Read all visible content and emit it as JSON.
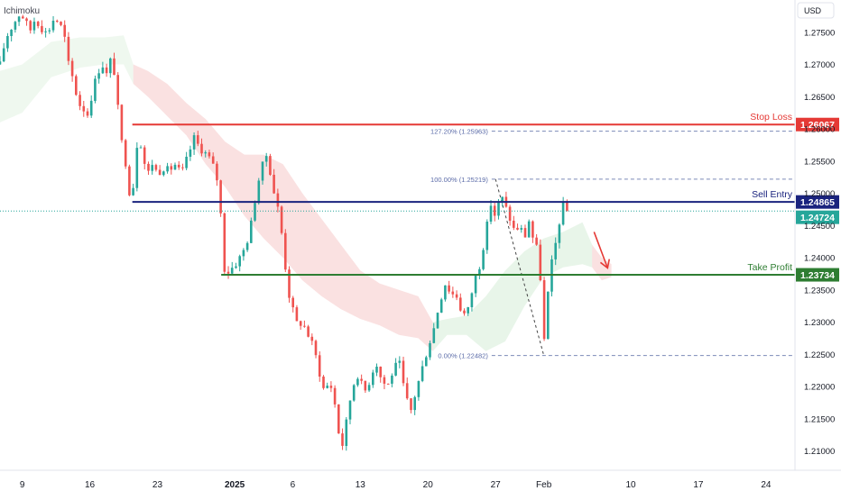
{
  "chart_data": {
    "type": "candlestick",
    "indicator_label": "Ichimoku",
    "currency_label": "USD",
    "y_ticks": [
      "1.27500",
      "1.27000",
      "1.26500",
      "1.26000",
      "1.25500",
      "1.25000",
      "1.24500",
      "1.24000",
      "1.23500",
      "1.23000",
      "1.22500",
      "1.22000",
      "1.21500",
      "1.21000"
    ],
    "ylim": [
      1.207,
      1.28
    ],
    "x_ticks": [
      {
        "label": "9",
        "day": 9
      },
      {
        "label": "16",
        "day": 16
      },
      {
        "label": "23",
        "day": 23
      },
      {
        "label": "2025",
        "day": 31,
        "bold": true
      },
      {
        "label": "6",
        "day": 37
      },
      {
        "label": "13",
        "day": 44
      },
      {
        "label": "20",
        "day": 51
      },
      {
        "label": "27",
        "day": 58
      },
      {
        "label": "Feb",
        "day": 63
      },
      {
        "label": "10",
        "day": 72
      },
      {
        "label": "17",
        "day": 79
      },
      {
        "label": "24",
        "day": 86
      }
    ],
    "xlim": [
      6.7,
      89.0
    ],
    "price_lines": [
      {
        "name": "Stop Loss",
        "price": "1.26067",
        "value": 1.26067,
        "x_start_day": 20.4,
        "color": "#e53935"
      },
      {
        "name": "Sell Entry",
        "price": "1.24865",
        "value": 1.24865,
        "x_start_day": 20.4,
        "color": "#1a237e"
      },
      {
        "name": "Take Profit",
        "price": "1.23734",
        "value": 1.23734,
        "x_start_day": 29.6,
        "color": "#2e7d32"
      }
    ],
    "current_price": {
      "price": "1.24724",
      "value": 1.24724,
      "color": "#26a69a"
    },
    "fib_levels": [
      {
        "label": "127.20% (1.25963)",
        "value": 1.25963,
        "x_start_day": 57.6
      },
      {
        "label": "100.00% (1.25219)",
        "value": 1.25219,
        "x_start_day": 57.6
      },
      {
        "label": "0.00% (1.22482)",
        "value": 1.22482,
        "x_start_day": 57.6
      }
    ],
    "fib_trend": [
      {
        "day": 58.0,
        "value": 1.25219
      },
      {
        "day": 63.0,
        "value": 1.22482
      }
    ],
    "projection_arrow": [
      {
        "day": 68.2,
        "value": 1.244
      },
      {
        "day": 69.6,
        "value": 1.2384
      }
    ],
    "candle_anchors": [
      [
        6.7,
        1.27
      ],
      [
        7.3,
        1.274
      ],
      [
        7.8,
        1.2755
      ],
      [
        8.3,
        1.2768
      ],
      [
        8.8,
        1.278
      ],
      [
        9.3,
        1.2768
      ],
      [
        9.8,
        1.2752
      ],
      [
        10.3,
        1.277
      ],
      [
        10.8,
        1.2762
      ],
      [
        11.3,
        1.2748
      ],
      [
        11.8,
        1.2755
      ],
      [
        12.3,
        1.2772
      ],
      [
        12.8,
        1.2765
      ],
      [
        13.3,
        1.275
      ],
      [
        13.8,
        1.27
      ],
      [
        14.3,
        1.2675
      ],
      [
        14.8,
        1.264
      ],
      [
        15.4,
        1.263
      ],
      [
        15.8,
        1.2622
      ],
      [
        16.3,
        1.266
      ],
      [
        16.8,
        1.2688
      ],
      [
        17.3,
        1.27
      ],
      [
        17.8,
        1.2682
      ],
      [
        18.3,
        1.2718
      ],
      [
        18.8,
        1.265
      ],
      [
        19.2,
        1.2585
      ],
      [
        19.6,
        1.2562
      ],
      [
        20.0,
        1.2505
      ],
      [
        20.4,
        1.2495
      ],
      [
        20.8,
        1.2568
      ],
      [
        21.1,
        1.2594
      ],
      [
        21.5,
        1.2555
      ],
      [
        22.0,
        1.253
      ],
      [
        22.5,
        1.2548
      ],
      [
        23.0,
        1.253
      ],
      [
        23.6,
        1.254
      ],
      [
        24.2,
        1.2535
      ],
      [
        24.8,
        1.2545
      ],
      [
        25.5,
        1.253
      ],
      [
        26.2,
        1.256
      ],
      [
        26.8,
        1.2586
      ],
      [
        27.4,
        1.257
      ],
      [
        28.0,
        1.2562
      ],
      [
        28.6,
        1.255
      ],
      [
        29.2,
        1.252
      ],
      [
        29.6,
        1.246
      ],
      [
        30.0,
        1.237
      ],
      [
        30.5,
        1.2382
      ],
      [
        31.0,
        1.2388
      ],
      [
        31.6,
        1.2402
      ],
      [
        32.2,
        1.242
      ],
      [
        32.8,
        1.246
      ],
      [
        33.3,
        1.251
      ],
      [
        33.8,
        1.254
      ],
      [
        34.3,
        1.256
      ],
      [
        34.8,
        1.2525
      ],
      [
        35.2,
        1.249
      ],
      [
        35.6,
        1.247
      ],
      [
        36.0,
        1.242
      ],
      [
        36.5,
        1.235
      ],
      [
        37.0,
        1.232
      ],
      [
        37.5,
        1.2295
      ],
      [
        38.0,
        1.23
      ],
      [
        38.6,
        1.228
      ],
      [
        39.2,
        1.226
      ],
      [
        39.8,
        1.222
      ],
      [
        40.3,
        1.219
      ],
      [
        40.8,
        1.221
      ],
      [
        41.3,
        1.218
      ],
      [
        41.8,
        1.2125
      ],
      [
        42.2,
        1.2108
      ],
      [
        42.7,
        1.216
      ],
      [
        43.2,
        1.22
      ],
      [
        43.8,
        1.222
      ],
      [
        44.4,
        1.219
      ],
      [
        45.0,
        1.221
      ],
      [
        45.6,
        1.224
      ],
      [
        46.2,
        1.221
      ],
      [
        46.8,
        1.22
      ],
      [
        47.4,
        1.2225
      ],
      [
        48.0,
        1.224
      ],
      [
        48.6,
        1.219
      ],
      [
        49.2,
        1.216
      ],
      [
        49.8,
        1.2195
      ],
      [
        50.4,
        1.2228
      ],
      [
        51.0,
        1.226
      ],
      [
        51.6,
        1.229
      ],
      [
        52.2,
        1.233
      ],
      [
        52.8,
        1.236
      ],
      [
        53.4,
        1.2345
      ],
      [
        54.0,
        1.234
      ],
      [
        54.6,
        1.231
      ],
      [
        55.2,
        1.232
      ],
      [
        55.8,
        1.2365
      ],
      [
        56.4,
        1.239
      ],
      [
        57.0,
        1.244
      ],
      [
        57.6,
        1.249
      ],
      [
        58.0,
        1.246
      ],
      [
        58.5,
        1.25
      ],
      [
        59.0,
        1.248
      ],
      [
        59.5,
        1.246
      ],
      [
        60.0,
        1.244
      ],
      [
        60.5,
        1.245
      ],
      [
        61.0,
        1.243
      ],
      [
        61.5,
        1.246
      ],
      [
        62.0,
        1.242
      ],
      [
        62.5,
        1.241
      ],
      [
        63.0,
        1.2265
      ],
      [
        63.4,
        1.234
      ],
      [
        63.8,
        1.239
      ],
      [
        64.2,
        1.242
      ],
      [
        64.6,
        1.2455
      ],
      [
        65.0,
        1.248
      ],
      [
        65.4,
        1.2472
      ]
    ],
    "candle_count": 150,
    "cloud_bands": [
      {
        "color": "#a5d6a7",
        "opacity": 0.18,
        "upper": [
          [
            6.7,
            1.269
          ],
          [
            9.0,
            1.27
          ],
          [
            12.0,
            1.2735
          ],
          [
            15.0,
            1.2742
          ],
          [
            17.5,
            1.2742
          ],
          [
            19.5,
            1.2745
          ],
          [
            20.5,
            1.27
          ]
        ],
        "lower": [
          [
            20.5,
            1.267
          ],
          [
            19.5,
            1.27
          ],
          [
            17.5,
            1.27
          ],
          [
            15.0,
            1.2695
          ],
          [
            12.0,
            1.268
          ],
          [
            9.0,
            1.2625
          ],
          [
            6.7,
            1.261
          ]
        ]
      },
      {
        "color": "#ef9a9a",
        "opacity": 0.3,
        "upper": [
          [
            20.5,
            1.27
          ],
          [
            22.0,
            1.269
          ],
          [
            24.0,
            1.267
          ],
          [
            26.0,
            1.264
          ],
          [
            28.0,
            1.2615
          ],
          [
            30.0,
            1.258
          ],
          [
            32.0,
            1.256
          ],
          [
            34.0,
            1.256
          ],
          [
            36.0,
            1.2545
          ],
          [
            38.0,
            1.25
          ],
          [
            40.0,
            1.246
          ],
          [
            42.0,
            1.242
          ],
          [
            44.0,
            1.238
          ],
          [
            46.0,
            1.236
          ],
          [
            48.0,
            1.235
          ],
          [
            50.0,
            1.234
          ],
          [
            51.5,
            1.23
          ]
        ],
        "lower": [
          [
            51.5,
            1.2255
          ],
          [
            50.0,
            1.2275
          ],
          [
            48.0,
            1.228
          ],
          [
            46.0,
            1.2295
          ],
          [
            44.0,
            1.2305
          ],
          [
            42.0,
            1.232
          ],
          [
            40.0,
            1.234
          ],
          [
            38.0,
            1.2365
          ],
          [
            36.0,
            1.24
          ],
          [
            34.0,
            1.243
          ],
          [
            32.0,
            1.2465
          ],
          [
            30.0,
            1.251
          ],
          [
            28.0,
            1.2545
          ],
          [
            26.0,
            1.259
          ],
          [
            24.0,
            1.262
          ],
          [
            22.0,
            1.265
          ],
          [
            20.5,
            1.267
          ]
        ]
      },
      {
        "color": "#a5d6a7",
        "opacity": 0.25,
        "upper": [
          [
            51.5,
            1.23
          ],
          [
            53.0,
            1.2305
          ],
          [
            55.0,
            1.231
          ],
          [
            57.0,
            1.234
          ],
          [
            59.0,
            1.238
          ],
          [
            61.0,
            1.241
          ],
          [
            63.0,
            1.243
          ],
          [
            65.0,
            1.244
          ],
          [
            67.0,
            1.2455
          ],
          [
            68.0,
            1.242
          ]
        ],
        "lower": [
          [
            68.0,
            1.2385
          ],
          [
            67.0,
            1.239
          ],
          [
            65.0,
            1.2385
          ],
          [
            63.0,
            1.237
          ],
          [
            61.0,
            1.2325
          ],
          [
            59.0,
            1.227
          ],
          [
            57.0,
            1.2255
          ],
          [
            55.0,
            1.228
          ],
          [
            53.0,
            1.228
          ],
          [
            51.5,
            1.2255
          ]
        ]
      },
      {
        "color": "#ef9a9a",
        "opacity": 0.3,
        "upper": [
          [
            68.0,
            1.242
          ],
          [
            69.0,
            1.24
          ],
          [
            70.0,
            1.239
          ]
        ],
        "lower": [
          [
            70.0,
            1.237
          ],
          [
            69.0,
            1.2365
          ],
          [
            68.0,
            1.2385
          ]
        ]
      }
    ]
  }
}
